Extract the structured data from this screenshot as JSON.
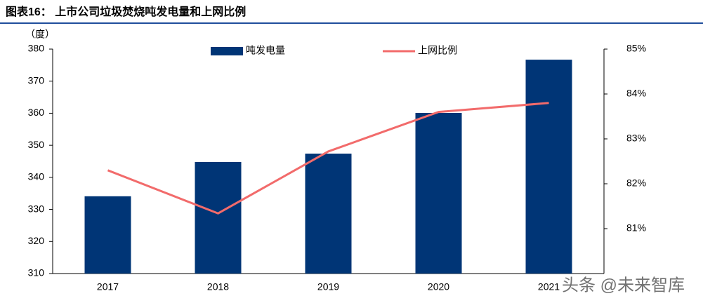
{
  "chart_data": {
    "type": "bar_line",
    "title": "图表16： 上市公司垃圾焚烧吨发电量和上网比例",
    "y_label": "（度）",
    "categories": [
      "2017",
      "2018",
      "2019",
      "2020",
      "2021"
    ],
    "series": [
      {
        "name": "吨发电量",
        "color": "#003576",
        "type": "bar",
        "values": [
          334.1,
          344.8,
          347.4,
          360.1,
          376.7
        ]
      },
      {
        "name": "上网比例",
        "color": "#f26b6b",
        "type": "line",
        "axis": "y2",
        "values": [
          82.3,
          81.34,
          82.72,
          83.6,
          83.8
        ]
      }
    ],
    "ylim": [
      310,
      380
    ],
    "yticks": [
      310,
      320,
      330,
      340,
      350,
      360,
      370,
      380
    ],
    "y2lim": [
      80,
      85
    ],
    "y2ticks": [
      {
        "value": 81,
        "label": "81%"
      },
      {
        "value": 82,
        "label": "82%"
      },
      {
        "value": 83,
        "label": "83%"
      },
      {
        "value": 84,
        "label": "84%"
      },
      {
        "value": 85,
        "label": "85%"
      }
    ],
    "watermark": "头条 @未来智库"
  }
}
